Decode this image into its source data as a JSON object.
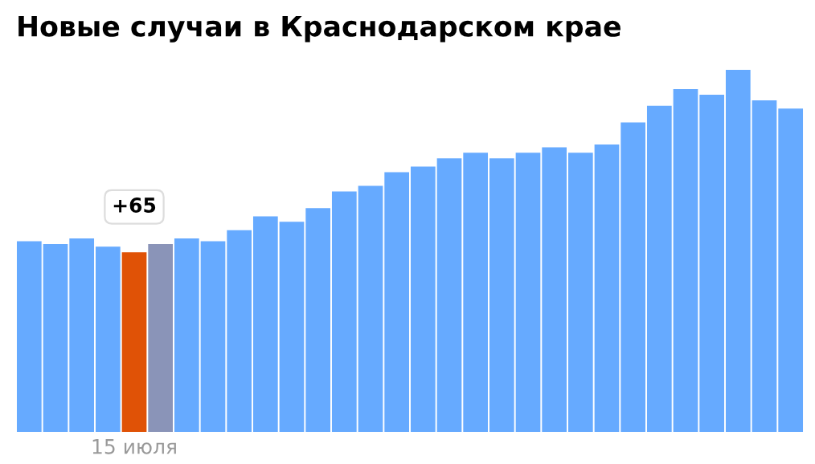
{
  "chart_data": {
    "type": "bar",
    "title": "Новые случаи в Краснодарском крае",
    "categories": [
      null,
      null,
      null,
      null,
      "15 июля",
      null,
      null,
      null,
      null,
      null,
      null,
      null,
      null,
      null,
      null,
      null,
      null,
      null,
      null,
      null,
      null,
      null,
      null,
      null,
      null,
      null,
      null,
      null,
      null,
      null
    ],
    "values": [
      69,
      68,
      70,
      67,
      65,
      68,
      70,
      69,
      73,
      78,
      76,
      81,
      87,
      89,
      94,
      96,
      99,
      101,
      99,
      101,
      103,
      101,
      104,
      112,
      118,
      124,
      122,
      131,
      120,
      117
    ],
    "colors": [
      "#66aaff",
      "#66aaff",
      "#66aaff",
      "#66aaff",
      "#e05206",
      "#8a94b8",
      "#66aaff",
      "#66aaff",
      "#66aaff",
      "#66aaff",
      "#66aaff",
      "#66aaff",
      "#66aaff",
      "#66aaff",
      "#66aaff",
      "#66aaff",
      "#66aaff",
      "#66aaff",
      "#66aaff",
      "#66aaff",
      "#66aaff",
      "#66aaff",
      "#66aaff",
      "#66aaff",
      "#66aaff",
      "#66aaff",
      "#66aaff",
      "#66aaff",
      "#66aaff",
      "#66aaff"
    ],
    "value_labels": [
      null,
      null,
      null,
      null,
      "+65",
      null,
      null,
      null,
      null,
      null,
      null,
      null,
      null,
      null,
      null,
      null,
      null,
      null,
      null,
      null,
      null,
      null,
      null,
      null,
      null,
      null,
      null,
      null,
      null,
      null
    ],
    "grid": false,
    "legend": false
  }
}
